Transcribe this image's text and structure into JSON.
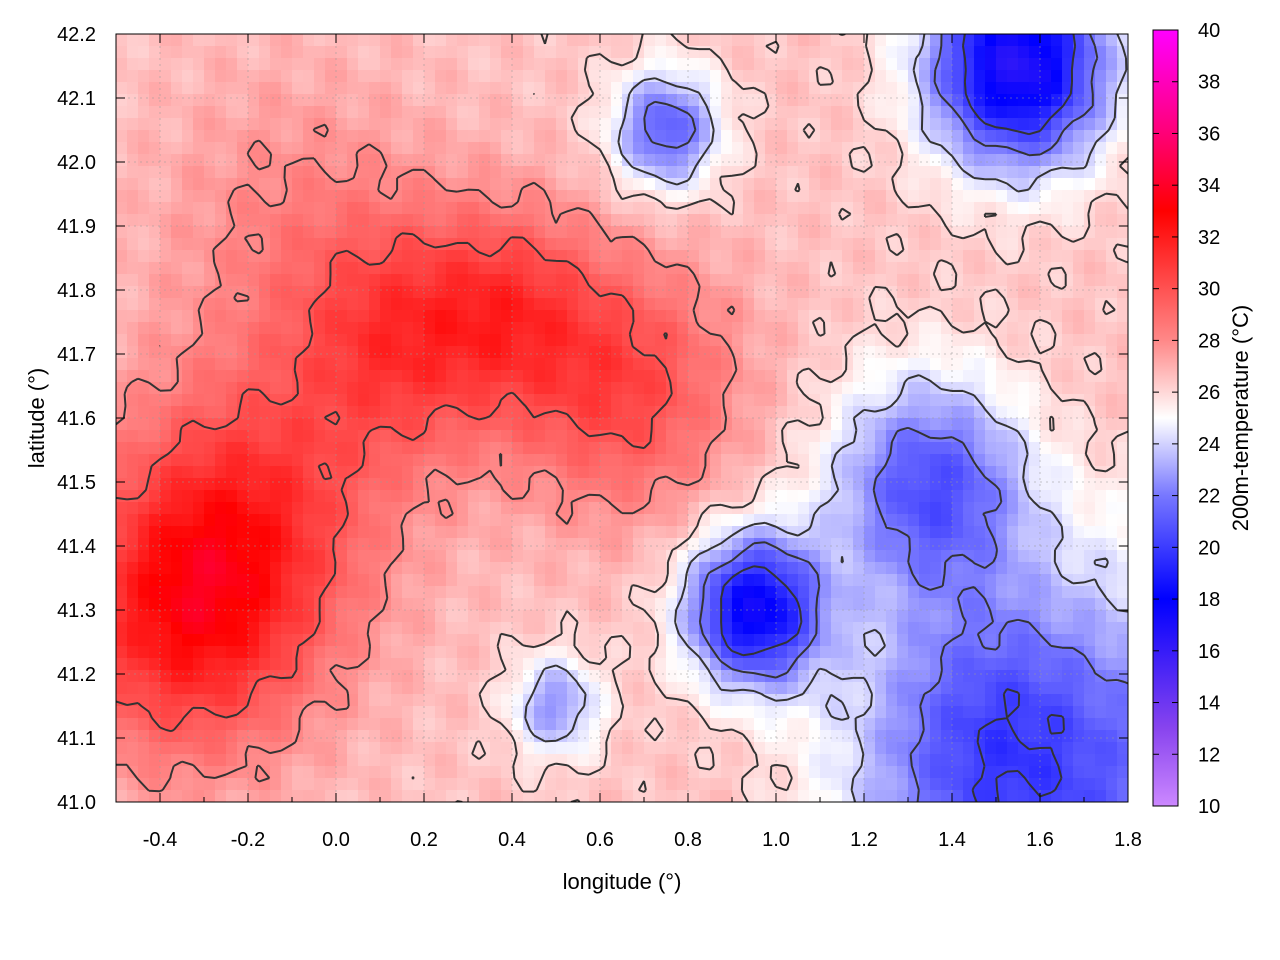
{
  "chart_data": {
    "type": "heatmap",
    "title": "",
    "xlabel": "longitude (°)",
    "ylabel": "latitude (°)",
    "colorbar_label": "200m-temperature (°C)",
    "xlim": [
      -0.5,
      1.8
    ],
    "ylim": [
      41.0,
      42.2
    ],
    "x_ticks": [
      "-0.4",
      "-0.2",
      "0.0",
      "0.2",
      "0.4",
      "0.6",
      "0.8",
      "1.0",
      "1.2",
      "1.4",
      "1.6",
      "1.8"
    ],
    "x_tick_values": [
      -0.4,
      -0.2,
      0.0,
      0.2,
      0.4,
      0.6,
      0.8,
      1.0,
      1.2,
      1.4,
      1.6,
      1.8
    ],
    "y_ticks": [
      "41.0",
      "41.1",
      "41.2",
      "41.3",
      "41.4",
      "41.5",
      "41.6",
      "41.7",
      "41.8",
      "41.9",
      "42.0",
      "42.1",
      "42.2"
    ],
    "y_tick_values": [
      41.0,
      41.1,
      41.2,
      41.3,
      41.4,
      41.5,
      41.6,
      41.7,
      41.8,
      41.9,
      42.0,
      42.1,
      42.2
    ],
    "colorbar_range": [
      10,
      40
    ],
    "colorbar_ticks": [
      "10",
      "12",
      "14",
      "16",
      "18",
      "20",
      "22",
      "24",
      "26",
      "28",
      "30",
      "32",
      "34",
      "36",
      "38",
      "40"
    ],
    "colorbar_tick_values": [
      10,
      12,
      14,
      16,
      18,
      20,
      22,
      24,
      26,
      28,
      30,
      32,
      34,
      36,
      38,
      40
    ],
    "colormap_stops": [
      {
        "value": 10,
        "color": "#cc88ff"
      },
      {
        "value": 13,
        "color": "#8844ee"
      },
      {
        "value": 18,
        "color": "#0000ff"
      },
      {
        "value": 22,
        "color": "#7777ff"
      },
      {
        "value": 25,
        "color": "#ffffff"
      },
      {
        "value": 28,
        "color": "#ff8888"
      },
      {
        "value": 33,
        "color": "#ff0000"
      },
      {
        "value": 36,
        "color": "#ff0077"
      },
      {
        "value": 40,
        "color": "#ff00ff"
      }
    ],
    "contour_levels": [
      20,
      22,
      24,
      26,
      28,
      30
    ],
    "grid": true,
    "warm_centers": [
      {
        "lon": -0.35,
        "lat": 41.28,
        "temp": 31.5,
        "spread": 0.28
      },
      {
        "lon": -0.2,
        "lat": 41.45,
        "temp": 30.5,
        "spread": 0.3
      },
      {
        "lon": 0.15,
        "lat": 41.72,
        "temp": 30.5,
        "spread": 0.25
      },
      {
        "lon": 0.65,
        "lat": 41.65,
        "temp": 30.5,
        "spread": 0.25
      },
      {
        "lon": 0.4,
        "lat": 41.78,
        "temp": 29.5,
        "spread": 0.2
      },
      {
        "lon": -0.1,
        "lat": 41.9,
        "temp": 28.0,
        "spread": 0.3
      }
    ],
    "cool_centers": [
      {
        "lon": 0.95,
        "lat": 41.3,
        "temp": 17.5,
        "spread": 0.15
      },
      {
        "lon": 1.55,
        "lat": 42.15,
        "temp": 16.5,
        "spread": 0.2
      },
      {
        "lon": 1.35,
        "lat": 41.5,
        "temp": 21.0,
        "spread": 0.22
      },
      {
        "lon": 1.5,
        "lat": 41.1,
        "temp": 22.0,
        "spread": 0.3
      },
      {
        "lon": 0.75,
        "lat": 42.05,
        "temp": 21.0,
        "spread": 0.12
      },
      {
        "lon": 0.5,
        "lat": 41.15,
        "temp": 22.5,
        "spread": 0.1
      }
    ],
    "background_temp": 26.5
  }
}
